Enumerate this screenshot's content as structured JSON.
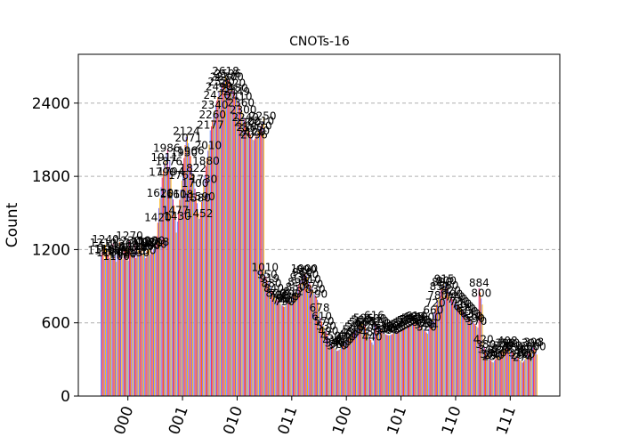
{
  "chart_data": {
    "type": "bar",
    "title": "CNOTs-16",
    "xlabel": "",
    "ylabel": "Count",
    "ylim": [
      0,
      2800
    ],
    "yticks": [
      0,
      600,
      1200,
      1800,
      2400
    ],
    "grid": "y-dashed",
    "categories": [
      "000",
      "001",
      "010",
      "011",
      "100",
      "101",
      "110",
      "111"
    ],
    "series_colors": [
      "#648fff",
      "#dc267f",
      "#fe6100",
      "#785ef0",
      "#ffb000"
    ],
    "groups": [
      {
        "label": "000",
        "values": [
          1150,
          1180,
          1210,
          1120,
          1240,
          1190,
          1160,
          1220,
          1130,
          1200,
          1170,
          1250,
          1140,
          1230,
          1100,
          1210,
          1180,
          1260,
          1150,
          1190,
          1120,
          1240,
          1200,
          1160,
          1230,
          1110,
          1270,
          1180,
          1140,
          1220,
          1170,
          1250,
          1130,
          1190,
          1210,
          1160,
          1180,
          1240,
          1150,
          1200,
          1220,
          1130,
          1190,
          1170,
          1210,
          1160,
          1230,
          1180,
          1200,
          1198
        ]
      },
      {
        "label": "001",
        "values": [
          1218,
          1310,
          1420,
          1540,
          1620,
          1711,
          1790,
          1849,
          1911,
          1931,
          1986,
          2025,
          1876,
          1933,
          1794,
          1683,
          1611,
          1561,
          1477,
          1339,
          1430,
          1520,
          1608,
          1690,
          1765,
          1853,
          1950,
          2056,
          2124,
          2139,
          2071,
          2018,
          1966,
          1887,
          1822,
          1760,
          1700,
          1648,
          1580,
          1498,
          1452,
          1510,
          1590,
          1660,
          1730,
          1805,
          1880,
          1950,
          2010,
          2060
        ]
      },
      {
        "label": "010",
        "values": [
          2177,
          2210,
          2260,
          2300,
          2340,
          2380,
          2420,
          2450,
          2490,
          2510,
          2530,
          2550,
          2570,
          2590,
          2618,
          2605,
          2596,
          2588,
          2570,
          2540,
          2520,
          2500,
          2480,
          2460,
          2449,
          2430,
          2410,
          2390,
          2360,
          2330,
          2300,
          2270,
          2240,
          2218,
          2200,
          2180,
          2160,
          2140,
          2120,
          2100,
          2096,
          2110,
          2130,
          2150,
          2170,
          2190,
          2210,
          2230,
          2250,
          2280
        ]
      },
      {
        "label": "011",
        "values": [
          1010,
          980,
          950,
          932,
          919,
          900,
          880,
          860,
          840,
          820,
          800,
          790,
          780,
          770,
          760,
          750,
          740,
          733,
          730,
          740,
          750,
          760,
          770,
          780,
          790,
          800,
          812,
          830,
          850,
          870,
          890,
          910,
          930,
          950,
          970,
          990,
          1000,
          1007,
          990,
          970,
          950,
          930,
          910,
          890,
          870,
          850,
          830,
          810,
          790,
          770
        ]
      },
      {
        "label": "100",
        "values": [
          678,
          640,
          610,
          589,
          570,
          550,
          530,
          510,
          490,
          470,
          450,
          430,
          410,
          400,
          390,
          380,
          370,
          372,
          380,
          390,
          400,
          410,
          420,
          430,
          440,
          450,
          460,
          470,
          480,
          490,
          500,
          510,
          520,
          530,
          540,
          550,
          560,
          570,
          580,
          590,
          596,
          580,
          560,
          540,
          520,
          500,
          480,
          460,
          440,
          420
        ]
      },
      {
        "label": "101",
        "values": [
          616,
          604,
          590,
          580,
          570,
          560,
          550,
          540,
          530,
          520,
          510,
          505,
          500,
          498,
          496,
          500,
          505,
          510,
          515,
          520,
          525,
          530,
          535,
          540,
          545,
          550,
          555,
          560,
          565,
          570,
          575,
          580,
          585,
          590,
          595,
          600,
          605,
          610,
          614,
          608,
          600,
          590,
          580,
          570,
          560,
          550,
          540,
          530,
          520,
          510
        ]
      },
      {
        "label": "110",
        "values": [
          551,
          570,
          600,
          630,
          660,
          690,
          720,
          750,
          780,
          810,
          853,
          870,
          890,
          910,
          915,
          920,
          900,
          880,
          860,
          840,
          820,
          805,
          790,
          780,
          770,
          760,
          750,
          740,
          730,
          720,
          710,
          700,
          690,
          680,
          670,
          660,
          650,
          640,
          630,
          620,
          610,
          600,
          590,
          580,
          570,
          560,
          884,
          850,
          800,
          750
        ]
      },
      {
        "label": "111",
        "values": [
          420,
          400,
          380,
          360,
          340,
          320,
          300,
          290,
          280,
          275,
          290,
          300,
          310,
          320,
          330,
          340,
          350,
          360,
          370,
          380,
          390,
          400,
          408,
          400,
          390,
          380,
          370,
          360,
          350,
          340,
          330,
          320,
          310,
          300,
          290,
          280,
          274,
          285,
          300,
          315,
          330,
          345,
          360,
          375,
          390,
          405,
          398,
          380,
          360,
          340
        ]
      }
    ]
  }
}
